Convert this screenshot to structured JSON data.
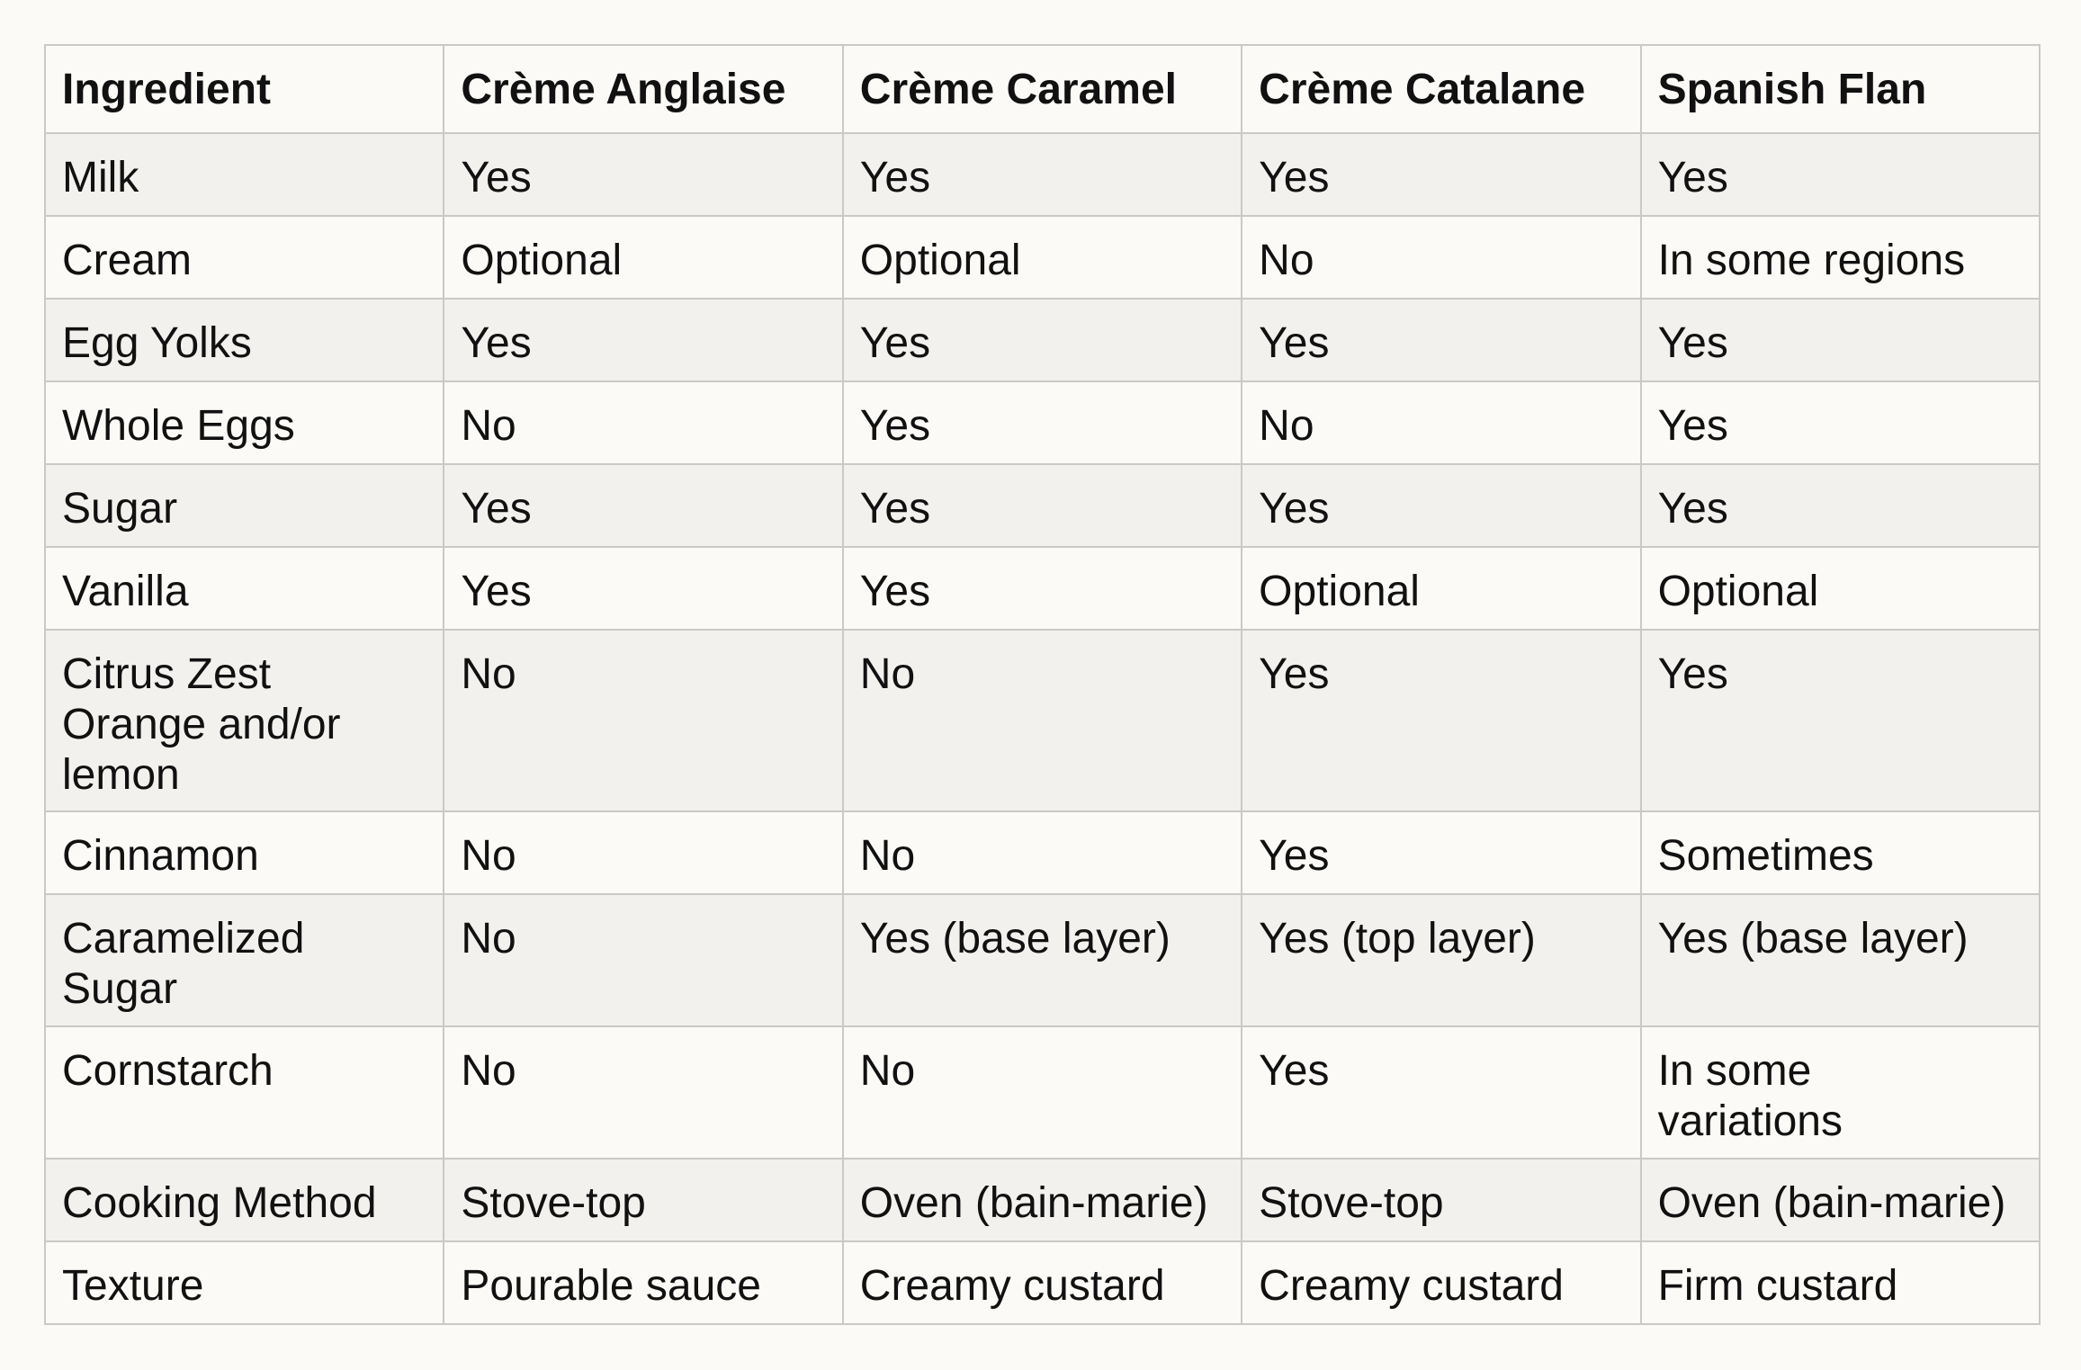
{
  "table": {
    "headers": [
      "Ingredient",
      "Crème Anglaise",
      "Crème Caramel",
      "Crème Catalane",
      "Spanish Flan"
    ],
    "rows": [
      [
        "Milk",
        "Yes",
        "Yes",
        "Yes",
        "Yes"
      ],
      [
        "Cream",
        "Optional",
        "Optional",
        "No",
        "In some regions"
      ],
      [
        "Egg Yolks",
        "Yes",
        "Yes",
        "Yes",
        "Yes"
      ],
      [
        "Whole Eggs",
        "No",
        "Yes",
        "No",
        "Yes"
      ],
      [
        "Sugar",
        "Yes",
        "Yes",
        "Yes",
        "Yes"
      ],
      [
        "Vanilla",
        "Yes",
        "Yes",
        "Optional",
        "Optional"
      ],
      [
        "Citrus Zest\nOrange and/or\nlemon",
        "No",
        "No",
        "Yes",
        "Yes"
      ],
      [
        "Cinnamon",
        "No",
        "No",
        "Yes",
        "Sometimes"
      ],
      [
        "Caramelized\nSugar",
        "No",
        "Yes (base layer)",
        "Yes (top layer)",
        "Yes (base layer)"
      ],
      [
        "Cornstarch",
        "No",
        "No",
        "Yes",
        "In some\nvariations"
      ],
      [
        "Cooking Method",
        "Stove-top",
        "Oven (bain-marie)",
        "Stove-top",
        "Oven (bain-marie)"
      ],
      [
        "Texture",
        "Pourable sauce",
        "Creamy custard",
        "Creamy custard",
        "Firm custard"
      ]
    ]
  }
}
